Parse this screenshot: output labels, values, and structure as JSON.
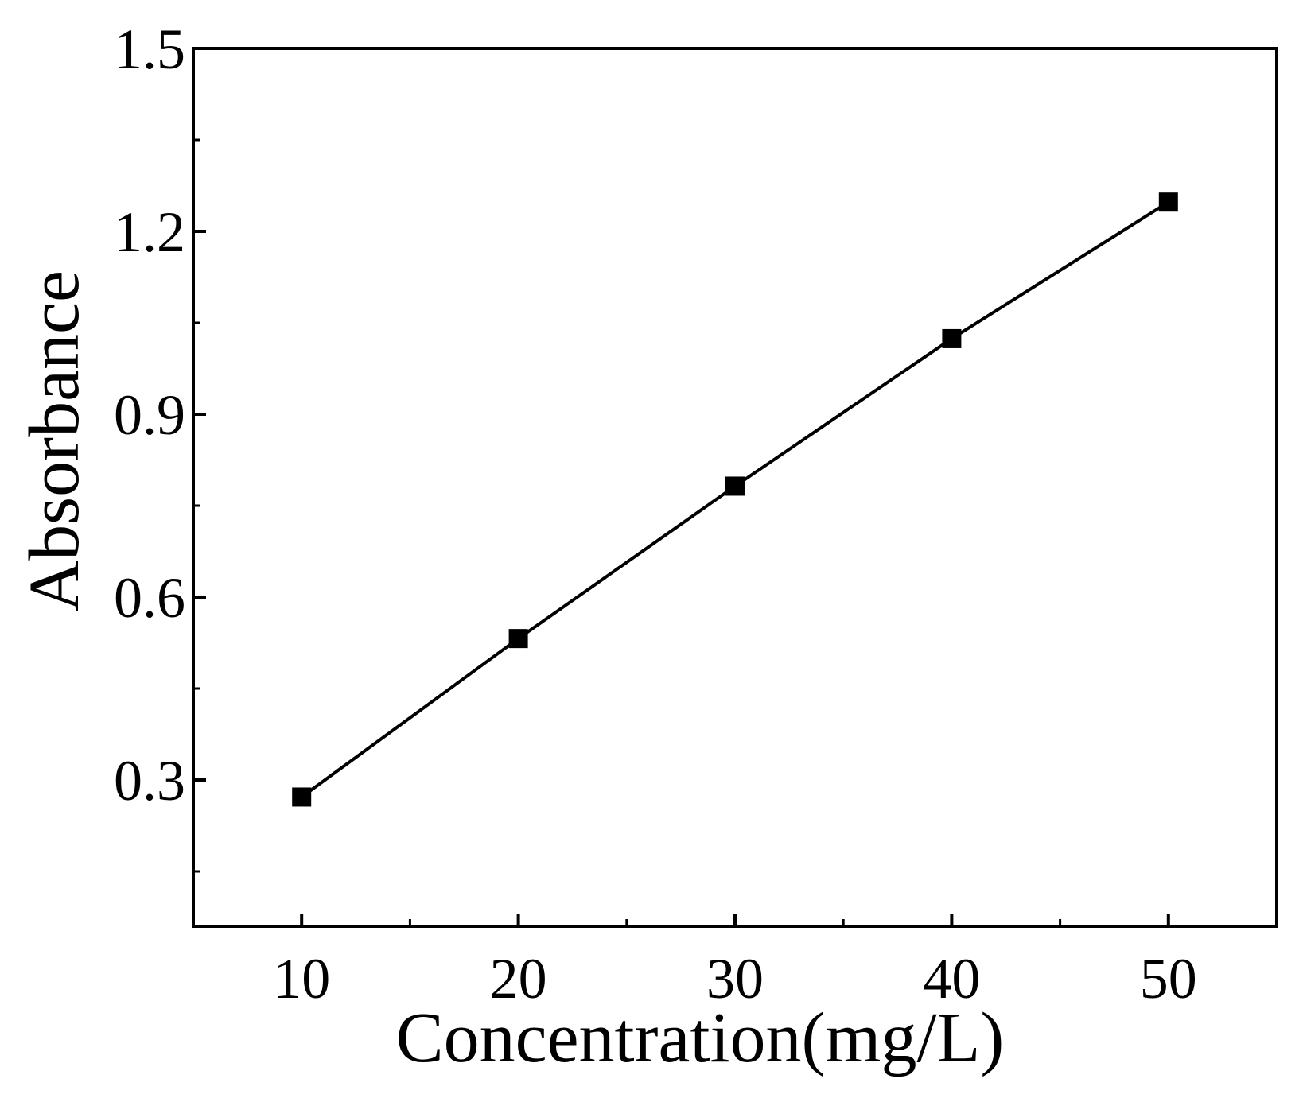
{
  "chart_data": {
    "type": "line",
    "title": "",
    "xlabel": "Concentration(mg/L)",
    "ylabel": "Absorbance",
    "xlim": [
      5,
      55
    ],
    "ylim": [
      0.06,
      1.5
    ],
    "x_ticks": [
      10,
      20,
      30,
      40,
      50
    ],
    "x_tick_labels": [
      "10",
      "20",
      "30",
      "40",
      "50"
    ],
    "x_minor_ticks": [
      15,
      25,
      35,
      45
    ],
    "y_ticks": [
      0.3,
      0.6,
      0.9,
      1.2,
      1.5
    ],
    "y_tick_labels": [
      "0.3",
      "0.6",
      "0.9",
      "1.2",
      "1.5"
    ],
    "y_minor_ticks": [
      0.15,
      0.45,
      0.75,
      1.05,
      1.35
    ],
    "grid": false,
    "legend": "none",
    "series": [
      {
        "marker": "square",
        "color": "#000000",
        "x": [
          10,
          20,
          30,
          40,
          50
        ],
        "y": [
          0.272,
          0.532,
          0.782,
          1.024,
          1.248
        ]
      }
    ]
  }
}
